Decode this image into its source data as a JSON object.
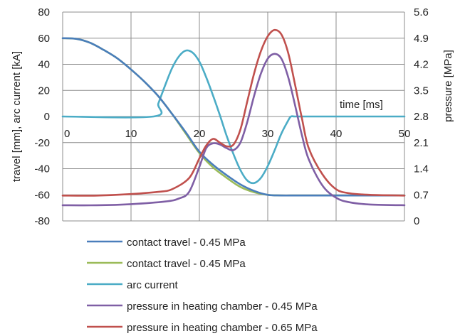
{
  "chart_data": {
    "type": "line",
    "xlabel": "time [ms]",
    "ylabel": "travel [mm], arc current [kA]",
    "y2label": "pressure [MPa]",
    "xlim": [
      0,
      50
    ],
    "ylim": [
      -80,
      80
    ],
    "y2lim": [
      0,
      5.6
    ],
    "xticks": [
      "0",
      "10",
      "20",
      "30",
      "40",
      "50"
    ],
    "yticks": [
      "-80",
      "-60",
      "-40",
      "-20",
      "0",
      "20",
      "40",
      "60",
      "80"
    ],
    "y2ticks": [
      "0",
      "0.7",
      "1.4",
      "2.1",
      "2.8",
      "3.5",
      "4.2",
      "4.9",
      "5.6"
    ],
    "grid": true,
    "legend_position": "bottom",
    "series": [
      {
        "name": "contact travel - 0.45 MPa",
        "color": "#4a7ebb",
        "axis": "left",
        "x": [
          0,
          2,
          4,
          6,
          8,
          10,
          12,
          14,
          16,
          18,
          20,
          22,
          24,
          26,
          28,
          30,
          32,
          34,
          36,
          38,
          40,
          42,
          44,
          46,
          48,
          50
        ],
        "y": [
          60,
          59.5,
          56.5,
          51,
          44.5,
          36,
          26.5,
          15.5,
          2,
          -12,
          -27,
          -37,
          -45,
          -52,
          -57,
          -60,
          -60.5,
          -60.5,
          -60.5,
          -60.5,
          -60.5,
          -60.5,
          -60.5,
          -60.5,
          -60.5,
          -60.5
        ]
      },
      {
        "name": "contact travel - 0.45 MPa",
        "color": "#9bbb59",
        "axis": "left",
        "x": [
          0,
          2,
          4,
          6,
          8,
          10,
          12,
          14,
          16,
          18,
          20,
          22,
          24,
          26,
          28,
          30,
          32,
          34,
          36,
          38,
          40,
          42,
          44,
          46,
          48,
          50
        ],
        "y": [
          60,
          59.5,
          56.5,
          51,
          44.5,
          36,
          26.5,
          15.5,
          2,
          -13,
          -28,
          -39,
          -47,
          -54,
          -58,
          -60,
          -60.5,
          -60.5,
          -60.5,
          -60.5,
          -60.5,
          -60.5,
          -60.5,
          -60.5,
          -60.5,
          -60.5
        ]
      },
      {
        "name": "arc current",
        "color": "#4bacc6",
        "axis": "left",
        "x": [
          0,
          13.3,
          14,
          15,
          16,
          17,
          18,
          19,
          20,
          21,
          22,
          23,
          24,
          25,
          26,
          27,
          28,
          29,
          30,
          31,
          32,
          33,
          33.4,
          34,
          36,
          50
        ],
        "y": [
          0,
          0,
          10,
          24,
          37,
          46,
          50.5,
          49,
          42,
          30,
          16,
          1,
          -15,
          -29,
          -41,
          -49,
          -51,
          -47,
          -38,
          -26,
          -13,
          -3,
          0,
          0,
          0,
          0
        ]
      },
      {
        "name": "pressure in heating chamber - 0.45 MPa",
        "color": "#7f5fa5",
        "axis": "right",
        "x": [
          0,
          5,
          10,
          15,
          17,
          18.5,
          20,
          21,
          22,
          23,
          24,
          25,
          26,
          27,
          28,
          29,
          30,
          31,
          32,
          33,
          34,
          35,
          36,
          38,
          40,
          42,
          45,
          50
        ],
        "y": [
          0.42,
          0.42,
          0.45,
          0.52,
          0.6,
          0.78,
          1.45,
          1.95,
          2.08,
          2.05,
          1.95,
          1.9,
          2.1,
          2.65,
          3.35,
          3.95,
          4.35,
          4.48,
          4.35,
          3.85,
          3.1,
          2.3,
          1.65,
          0.95,
          0.62,
          0.5,
          0.44,
          0.42
        ]
      },
      {
        "name": "pressure in heating chamber - 0.65 MPa",
        "color": "#c0504d",
        "axis": "right",
        "x": [
          0,
          5,
          10,
          14,
          16,
          18.5,
          20,
          21,
          22,
          23,
          24,
          25,
          26,
          27,
          28,
          29,
          30,
          31,
          32,
          33,
          34,
          35,
          36,
          38,
          40,
          42,
          45,
          50
        ],
        "y": [
          0.68,
          0.68,
          0.72,
          0.78,
          0.85,
          1.15,
          1.68,
          2.02,
          2.2,
          2.1,
          2.0,
          2.05,
          2.45,
          3.2,
          3.95,
          4.55,
          4.95,
          5.12,
          5.0,
          4.5,
          3.65,
          2.75,
          1.95,
          1.25,
          0.85,
          0.74,
          0.7,
          0.68
        ]
      }
    ]
  }
}
